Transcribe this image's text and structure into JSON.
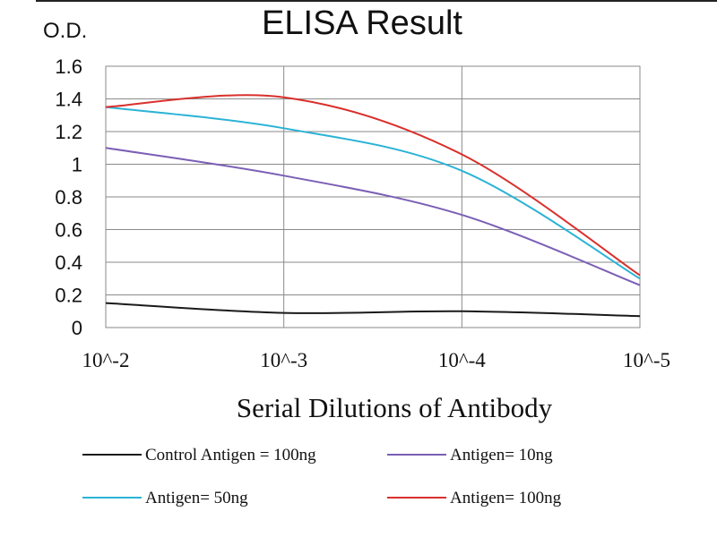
{
  "chart_data": {
    "type": "line",
    "title": "ELISA Result",
    "ylabel": "O.D.",
    "xlabel": "Serial Dilutions of Antibody",
    "categories": [
      "10^-2",
      "10^-3",
      "10^-4",
      "10^-5"
    ],
    "ylim": [
      0,
      1.6
    ],
    "yticks": [
      "0",
      "0.2",
      "0.4",
      "0.6",
      "0.8",
      "1",
      "1.2",
      "1.4",
      "1.6"
    ],
    "yvalues": [
      0,
      0.2,
      0.4,
      0.6,
      0.8,
      1.0,
      1.2,
      1.4,
      1.6
    ],
    "grid": true,
    "legend_position": "bottom",
    "series": [
      {
        "name": "Control Antigen = 100ng",
        "color": "#1a1a1a",
        "values": [
          0.15,
          0.09,
          0.1,
          0.07
        ]
      },
      {
        "name": "Antigen= 10ng",
        "color": "#7b5fb5",
        "values": [
          1.1,
          0.93,
          0.69,
          0.26
        ]
      },
      {
        "name": "Antigen= 50ng",
        "color": "#2bb3d6",
        "values": [
          1.35,
          1.22,
          0.96,
          0.3
        ]
      },
      {
        "name": "Antigen= 100ng",
        "color": "#d9302c",
        "values": [
          1.35,
          1.41,
          1.06,
          0.32
        ]
      }
    ]
  }
}
